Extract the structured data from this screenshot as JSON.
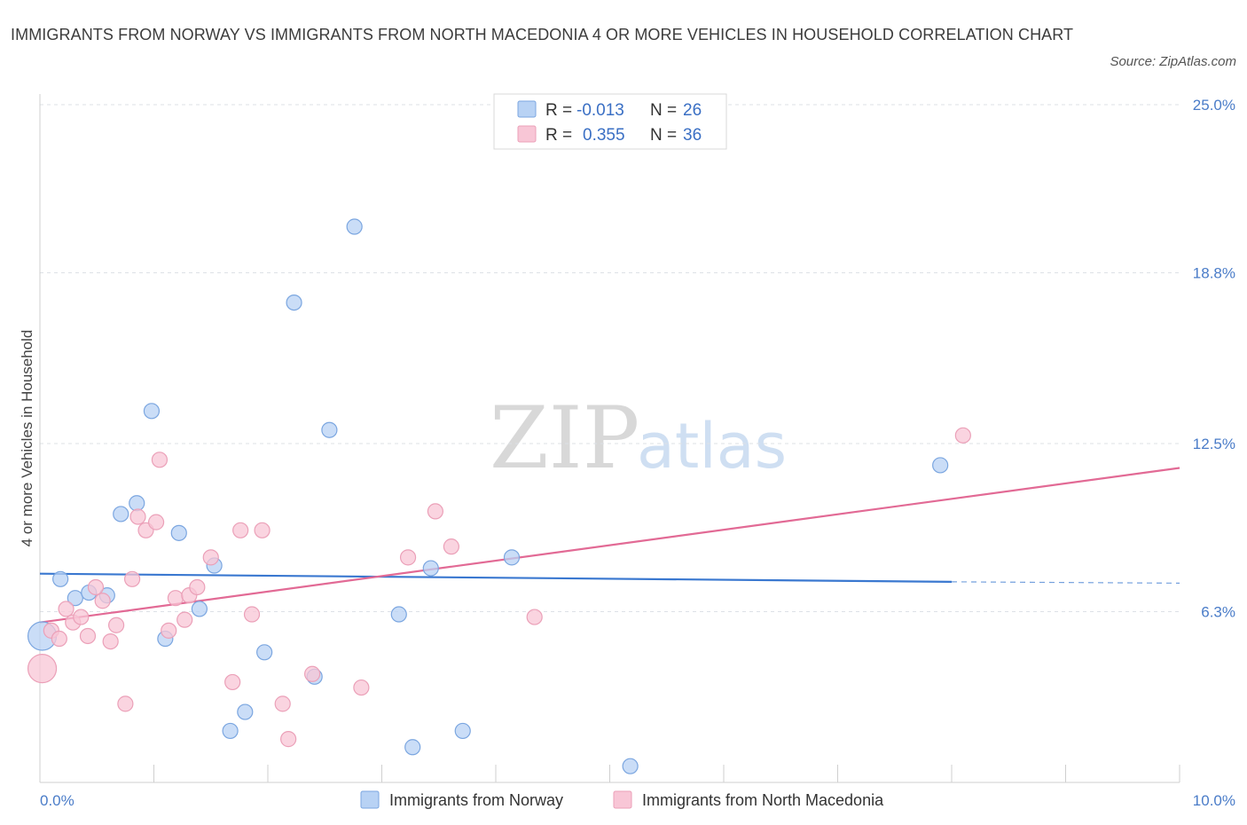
{
  "title": "IMMIGRANTS FROM NORWAY VS IMMIGRANTS FROM NORTH MACEDONIA 4 OR MORE VEHICLES IN HOUSEHOLD CORRELATION CHART",
  "source": "Source: ZipAtlas.com",
  "watermark": {
    "zip": "ZIP",
    "atlas": "atlas"
  },
  "legend": {
    "r_label": "R =",
    "n_label": "N =",
    "norway": {
      "r": "-0.013",
      "n": "26"
    },
    "macedonia": {
      "r": "0.355",
      "n": "36"
    }
  },
  "colors": {
    "norway_fill": "#b8d2f4",
    "norway_stroke": "#7ba6e0",
    "norway_line": "#3a78d0",
    "macedonia_fill": "#f8c6d6",
    "macedonia_stroke": "#eba0b8",
    "macedonia_line": "#e26a95",
    "grid": "#dde1e6",
    "tick_text": "#4a7cc8"
  },
  "chart_data": {
    "type": "scatter",
    "title": "IMMIGRANTS FROM NORWAY VS IMMIGRANTS FROM NORTH MACEDONIA 4 OR MORE VEHICLES IN HOUSEHOLD CORRELATION CHART",
    "xlabel": "",
    "ylabel": "4 or more Vehicles in Household",
    "xlim": [
      0,
      10
    ],
    "ylim": [
      0,
      25
    ],
    "x_tick_labels": [
      {
        "value": 0,
        "label": "0.0%"
      },
      {
        "value": 10,
        "label": "10.0%"
      }
    ],
    "y_tick_labels": [
      {
        "value": 6.3,
        "label": "6.3%"
      },
      {
        "value": 12.5,
        "label": "12.5%"
      },
      {
        "value": 18.8,
        "label": "18.8%"
      },
      {
        "value": 25.0,
        "label": "25.0%"
      }
    ],
    "series": [
      {
        "name": "Immigrants from Norway",
        "color": "#b8d2f4",
        "points": [
          {
            "x": 0.02,
            "y": 5.4,
            "big": true
          },
          {
            "x": 0.18,
            "y": 7.5
          },
          {
            "x": 0.31,
            "y": 6.8
          },
          {
            "x": 0.43,
            "y": 7.0
          },
          {
            "x": 0.59,
            "y": 6.9
          },
          {
            "x": 0.71,
            "y": 9.9
          },
          {
            "x": 0.85,
            "y": 10.3
          },
          {
            "x": 0.98,
            "y": 13.7
          },
          {
            "x": 1.1,
            "y": 5.3
          },
          {
            "x": 1.22,
            "y": 9.2
          },
          {
            "x": 1.4,
            "y": 6.4
          },
          {
            "x": 1.53,
            "y": 8.0
          },
          {
            "x": 1.67,
            "y": 1.9
          },
          {
            "x": 1.8,
            "y": 2.6
          },
          {
            "x": 1.97,
            "y": 4.8
          },
          {
            "x": 2.23,
            "y": 17.7
          },
          {
            "x": 2.41,
            "y": 3.9
          },
          {
            "x": 2.54,
            "y": 13.0
          },
          {
            "x": 2.76,
            "y": 20.5
          },
          {
            "x": 3.15,
            "y": 6.2
          },
          {
            "x": 3.27,
            "y": 1.3
          },
          {
            "x": 3.43,
            "y": 7.9
          },
          {
            "x": 3.71,
            "y": 1.9
          },
          {
            "x": 4.14,
            "y": 8.3
          },
          {
            "x": 5.18,
            "y": 0.6
          },
          {
            "x": 7.9,
            "y": 11.7
          }
        ],
        "trend": {
          "x0": 0,
          "y0": 7.7,
          "x1": 8.0,
          "y1": 7.4,
          "dash_to_x": 10,
          "dash_to_y": 7.35
        }
      },
      {
        "name": "Immigrants from North Macedonia",
        "color": "#f8c6d6",
        "points": [
          {
            "x": 0.02,
            "y": 4.2,
            "big": true
          },
          {
            "x": 0.1,
            "y": 5.6
          },
          {
            "x": 0.17,
            "y": 5.3
          },
          {
            "x": 0.23,
            "y": 6.4
          },
          {
            "x": 0.29,
            "y": 5.9
          },
          {
            "x": 0.36,
            "y": 6.1
          },
          {
            "x": 0.42,
            "y": 5.4
          },
          {
            "x": 0.49,
            "y": 7.2
          },
          {
            "x": 0.55,
            "y": 6.7
          },
          {
            "x": 0.62,
            "y": 5.2
          },
          {
            "x": 0.67,
            "y": 5.8
          },
          {
            "x": 0.75,
            "y": 2.9
          },
          {
            "x": 0.81,
            "y": 7.5
          },
          {
            "x": 0.86,
            "y": 9.8
          },
          {
            "x": 0.93,
            "y": 9.3
          },
          {
            "x": 1.02,
            "y": 9.6
          },
          {
            "x": 1.05,
            "y": 11.9
          },
          {
            "x": 1.13,
            "y": 5.6
          },
          {
            "x": 1.19,
            "y": 6.8
          },
          {
            "x": 1.27,
            "y": 6.0
          },
          {
            "x": 1.31,
            "y": 6.9
          },
          {
            "x": 1.38,
            "y": 7.2
          },
          {
            "x": 1.5,
            "y": 8.3
          },
          {
            "x": 1.69,
            "y": 3.7
          },
          {
            "x": 1.76,
            "y": 9.3
          },
          {
            "x": 1.86,
            "y": 6.2
          },
          {
            "x": 1.95,
            "y": 9.3
          },
          {
            "x": 2.13,
            "y": 2.9
          },
          {
            "x": 2.18,
            "y": 1.6
          },
          {
            "x": 2.39,
            "y": 4.0
          },
          {
            "x": 2.82,
            "y": 3.5
          },
          {
            "x": 3.23,
            "y": 8.3
          },
          {
            "x": 3.47,
            "y": 10.0
          },
          {
            "x": 3.61,
            "y": 8.7
          },
          {
            "x": 4.34,
            "y": 6.1
          },
          {
            "x": 8.1,
            "y": 12.8
          }
        ],
        "trend": {
          "x0": 0,
          "y0": 5.9,
          "x1": 10,
          "y1": 11.6
        }
      }
    ]
  }
}
